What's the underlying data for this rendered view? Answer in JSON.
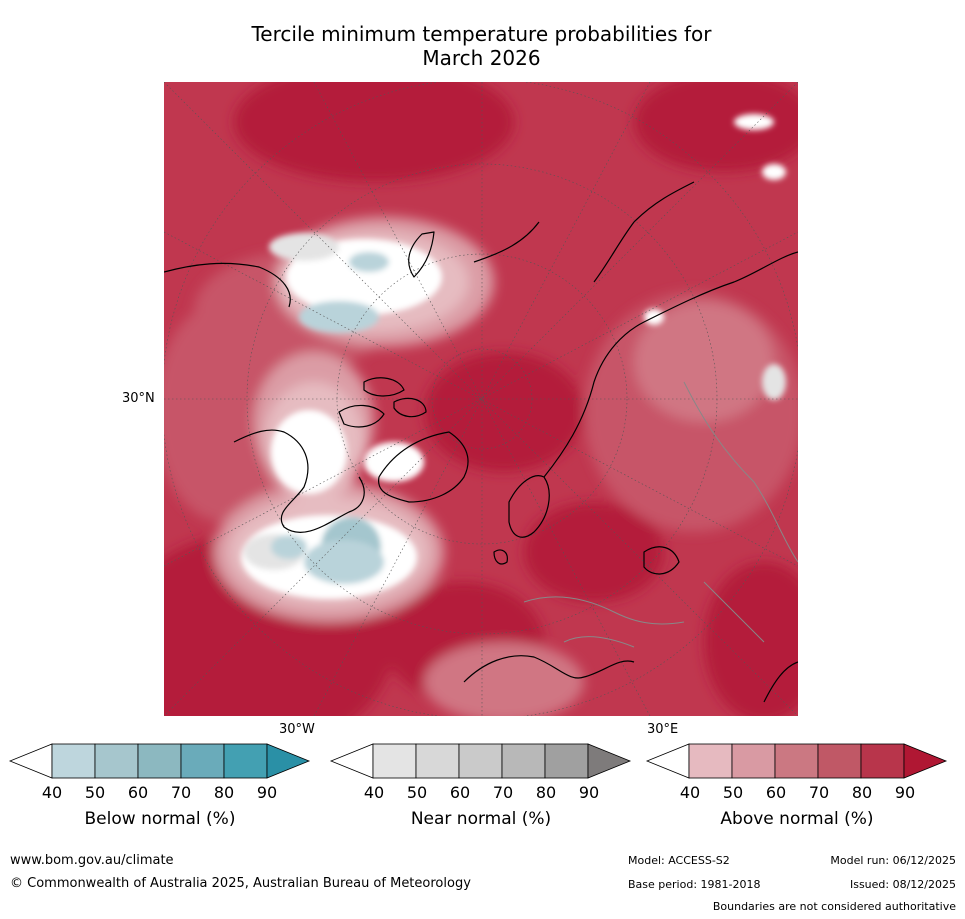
{
  "title_line1": "Tercile minimum temperature probabilities for",
  "title_line2": "March 2026",
  "map": {
    "lat_label": "30°N",
    "lon_label_left": "30°W",
    "lon_label_right": "30°E",
    "colors": {
      "above_90": "#b41c3a",
      "above_80": "#c0374f",
      "above_70": "#c75568",
      "above_60": "#d07683",
      "above_50": "#db9ca5",
      "above_40": "#e6bcc1",
      "near": "#e4e4e4",
      "below_40": "#b9d3da",
      "below_50": "#a4c6ce"
    }
  },
  "colorbars": [
    {
      "label": "Below normal (%)",
      "ticks": [
        "40",
        "50",
        "60",
        "70",
        "80",
        "90"
      ],
      "colors": [
        "#ffffff",
        "#bed6dd",
        "#a6c6cd",
        "#8cb8c0",
        "#6aabba",
        "#43a0b2",
        "#2a90a6"
      ]
    },
    {
      "label": "Near normal (%)",
      "ticks": [
        "40",
        "50",
        "60",
        "70",
        "80",
        "90"
      ],
      "colors": [
        "#ffffff",
        "#e4e4e4",
        "#d8d8d8",
        "#cacaca",
        "#b8b8b8",
        "#a0a0a0",
        "#7e7b7b"
      ]
    },
    {
      "label": "Above normal (%)",
      "ticks": [
        "40",
        "50",
        "60",
        "70",
        "80",
        "90"
      ],
      "colors": [
        "#ffffff",
        "#e6bac0",
        "#d99aa3",
        "#cb7882",
        "#c05866",
        "#b8354b",
        "#b01733"
      ]
    }
  ],
  "footer": {
    "website": "www.bom.gov.au/climate",
    "copyright": "© Commonwealth of Australia 2025, Australian Bureau of Meteorology",
    "model": "Model: ACCESS-S2",
    "base_period": "Base period: 1981-2018",
    "model_run": "Model run: 06/12/2025",
    "issued": "Issued: 08/12/2025",
    "disclaimer": "Boundaries are not considered authoritative"
  }
}
